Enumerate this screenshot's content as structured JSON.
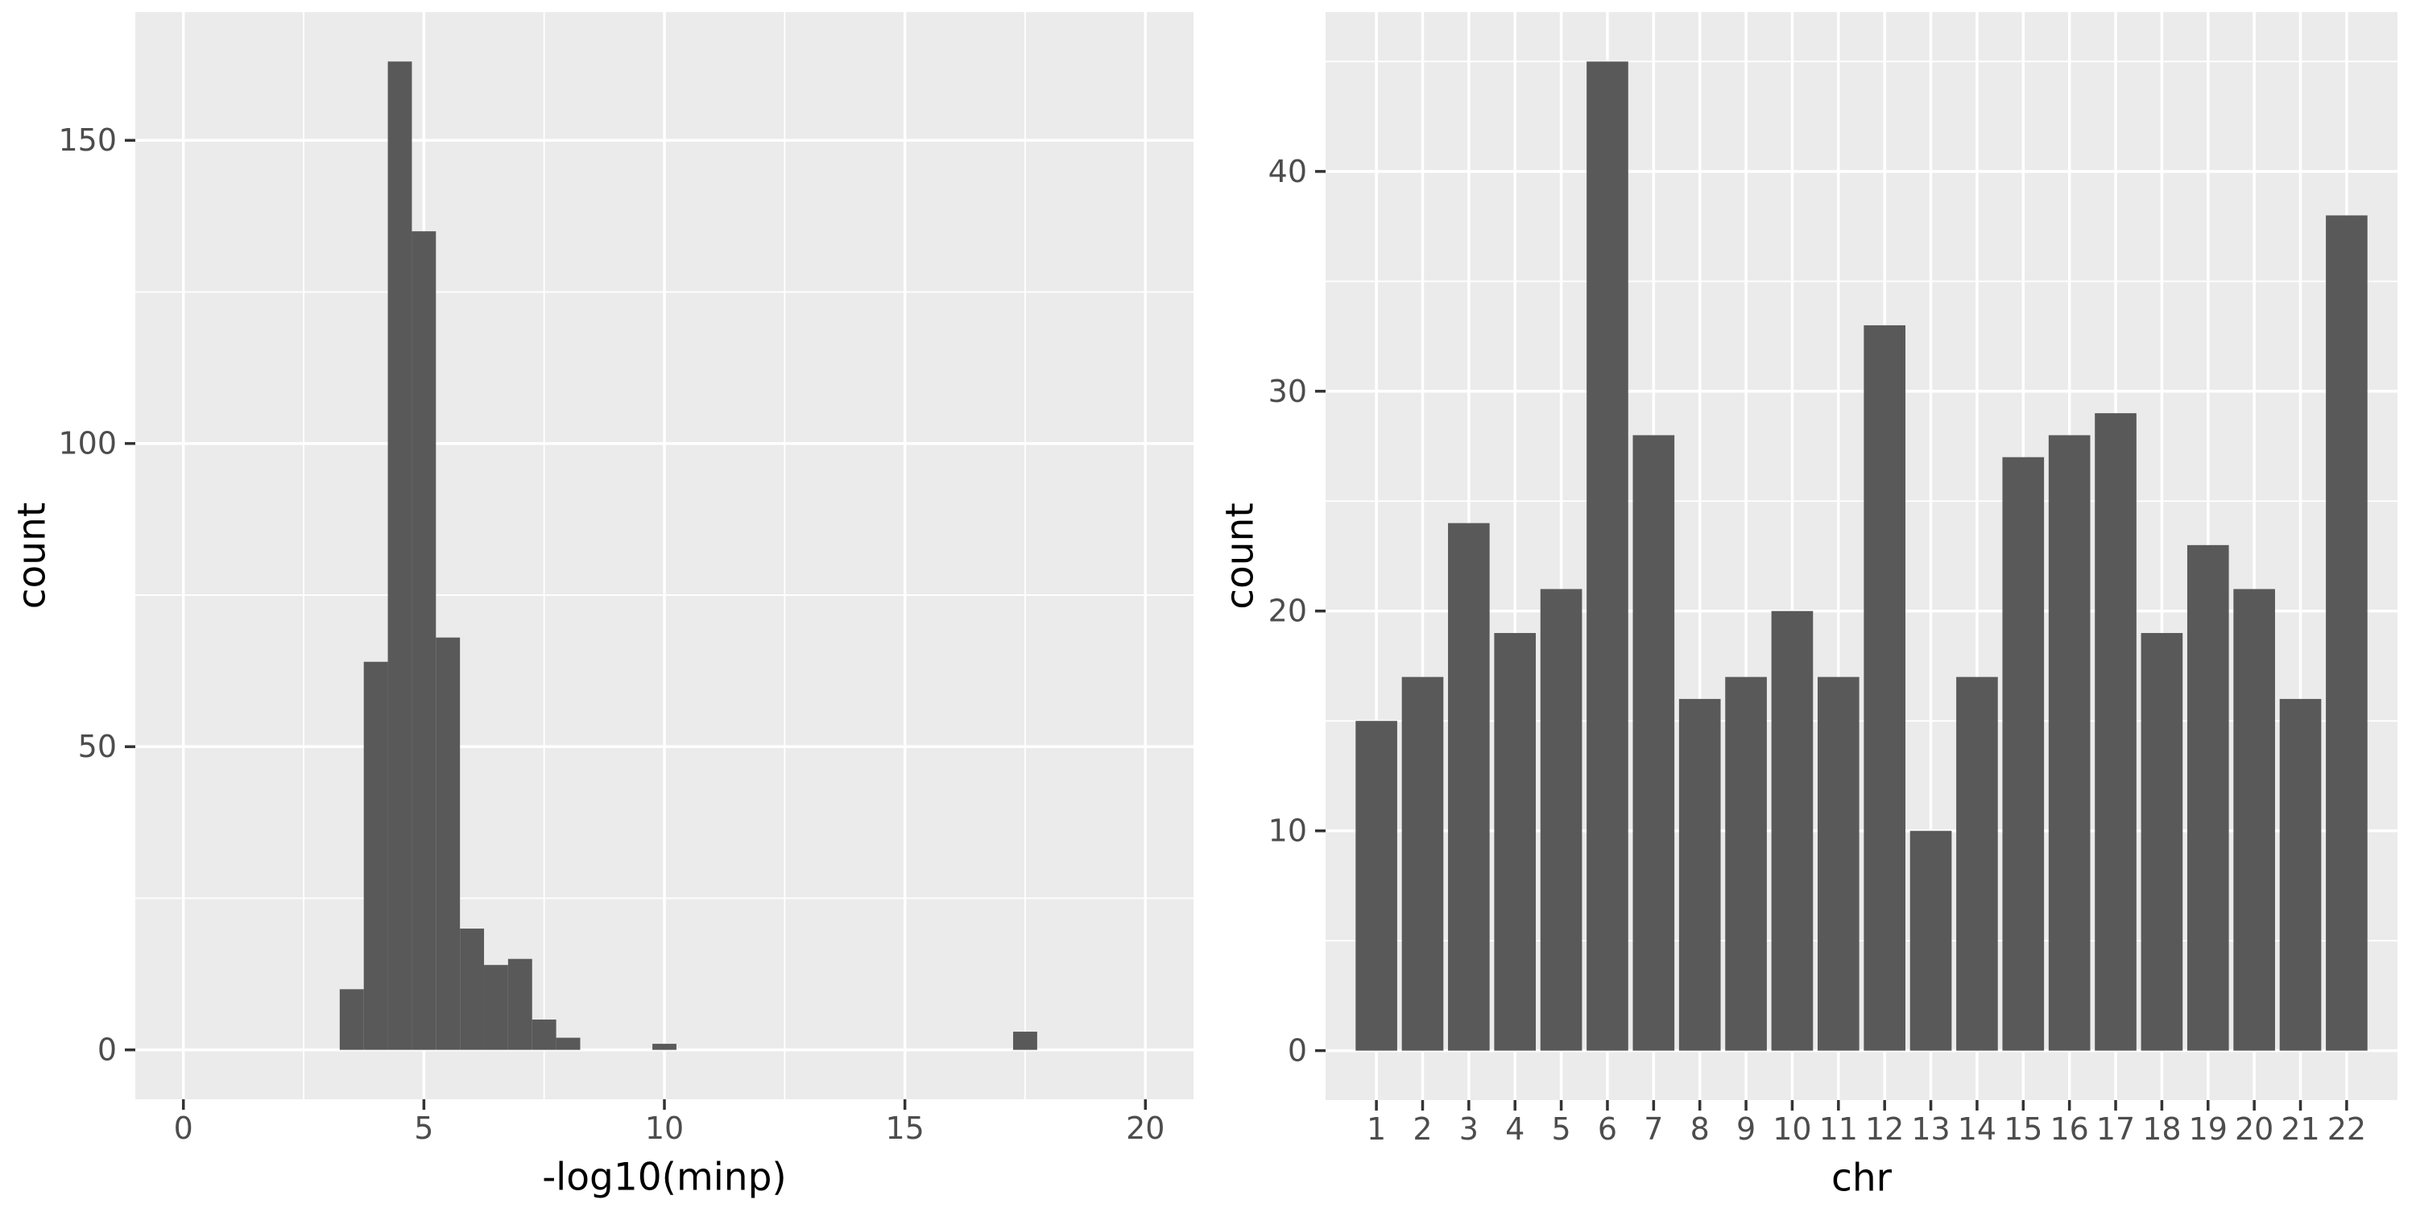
{
  "figure": {
    "background": "#FFFFFF",
    "n_charts": 2
  },
  "style": {
    "bar_fill": "#595959",
    "panel_bg": "#EBEBEB",
    "grid_color": "#FFFFFF",
    "tick_color": "#333333",
    "tick_label_color": "#4D4D4D",
    "axis_title_color": "#000000"
  },
  "chart_data": [
    {
      "id": "minp-histogram",
      "type": "bar",
      "subtype": "histogram",
      "title": "",
      "xlabel": "-log10(minp)",
      "ylabel": "count",
      "bin_width": 0.5,
      "bin_centers": [
        3.5,
        4,
        4.5,
        5,
        5.5,
        6,
        6.5,
        7,
        7.5,
        8,
        10,
        17.5
      ],
      "values": [
        10,
        64,
        163,
        135,
        68,
        20,
        14,
        15,
        5,
        2,
        1,
        3
      ],
      "x_ticks": [
        0,
        5,
        10,
        15,
        20
      ],
      "x_tick_labels": [
        "0",
        "5",
        "10",
        "15",
        "20"
      ],
      "x_minor": [
        2.5,
        7.5,
        12.5,
        17.5
      ],
      "y_ticks": [
        0,
        50,
        100,
        150
      ],
      "y_tick_labels": [
        "0",
        "50",
        "100",
        "150"
      ],
      "y_minor": [
        25,
        75,
        125
      ],
      "xlim": [
        -1,
        21
      ],
      "ylim": [
        -8.15,
        171.15
      ],
      "grid": true,
      "legend": "none"
    },
    {
      "id": "chr-barplot",
      "type": "bar",
      "subtype": "categorical",
      "title": "",
      "xlabel": "chr",
      "ylabel": "count",
      "categories": [
        "1",
        "2",
        "3",
        "4",
        "5",
        "6",
        "7",
        "8",
        "9",
        "10",
        "11",
        "12",
        "13",
        "14",
        "15",
        "16",
        "17",
        "18",
        "19",
        "20",
        "21",
        "22"
      ],
      "values": [
        15,
        17,
        24,
        19,
        21,
        45,
        28,
        16,
        17,
        20,
        17,
        33,
        10,
        17,
        27,
        28,
        29,
        19,
        23,
        21,
        16,
        38
      ],
      "y_ticks": [
        0,
        10,
        20,
        30,
        40
      ],
      "y_tick_labels": [
        "0",
        "10",
        "20",
        "30",
        "40"
      ],
      "y_minor": [
        5,
        15,
        25,
        35,
        45
      ],
      "ylim": [
        -2.25,
        47.25
      ],
      "x_expand": 0.6,
      "bar_rel_width": 0.9,
      "grid": true,
      "legend": "none"
    }
  ]
}
